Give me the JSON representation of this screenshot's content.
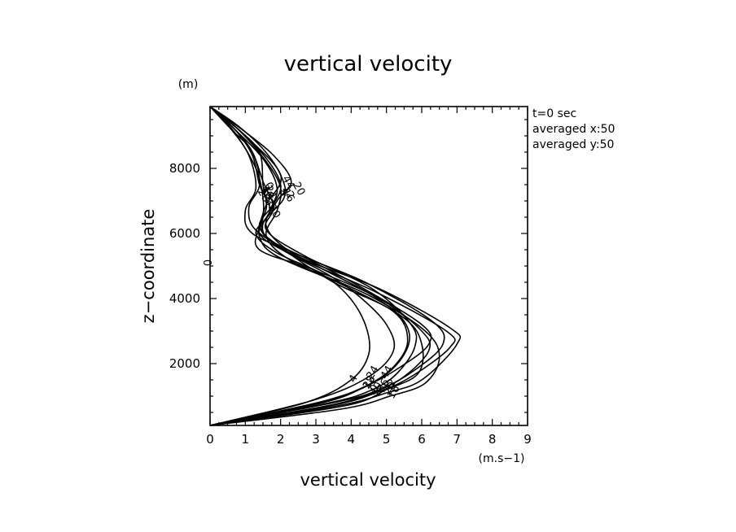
{
  "chart_data": {
    "type": "line",
    "title": "vertical velocity",
    "xlabel": "vertical velocity",
    "ylabel": "z−coordinate",
    "x_unit": "(m.s−1)",
    "y_unit": "(m)",
    "xlim": [
      0,
      9
    ],
    "ylim": [
      100,
      9900
    ],
    "x_ticks": [
      "0",
      "1",
      "2",
      "3",
      "4",
      "5",
      "6",
      "7",
      "8",
      "9"
    ],
    "y_ticks": [
      {
        "value": 2000,
        "label": "2000"
      },
      {
        "value": 4000,
        "label": "4000"
      },
      {
        "value": 6000,
        "label": "6000"
      },
      {
        "value": 8000,
        "label": "8000"
      }
    ],
    "info": [
      "t=0 sec",
      "averaged  x:50",
      "averaged  y:50"
    ],
    "series": [
      {
        "label": "0",
        "points": [
          [
            0,
            100
          ],
          [
            3.4,
            800
          ],
          [
            4.6,
            1200
          ],
          [
            5.3,
            1700
          ],
          [
            5.8,
            2500
          ],
          [
            5.7,
            3200
          ],
          [
            4.6,
            4300
          ],
          [
            2.7,
            5300
          ],
          [
            1.6,
            6100
          ],
          [
            1.8,
            6800
          ],
          [
            1.5,
            7600
          ],
          [
            1.2,
            8500
          ],
          [
            0.7,
            9200
          ],
          [
            0,
            9900
          ]
        ]
      },
      {
        "label": "4",
        "points": [
          [
            0,
            100
          ],
          [
            2.7,
            800
          ],
          [
            4.0,
            1500
          ],
          [
            4.5,
            2300
          ],
          [
            4.4,
            3200
          ],
          [
            3.9,
            4100
          ],
          [
            3.1,
            4800
          ],
          [
            1.9,
            5400
          ],
          [
            1.3,
            6000
          ],
          [
            1.7,
            6700
          ],
          [
            1.4,
            7500
          ],
          [
            1.2,
            8400
          ],
          [
            0.7,
            9200
          ],
          [
            0,
            9900
          ]
        ]
      },
      {
        "label": "12",
        "points": [
          [
            0,
            100
          ],
          [
            3.2,
            800
          ],
          [
            4.4,
            1300
          ],
          [
            5.2,
            1900
          ],
          [
            5.6,
            2700
          ],
          [
            5.2,
            3600
          ],
          [
            3.5,
            4500
          ],
          [
            2.1,
            5500
          ],
          [
            1.4,
            6200
          ],
          [
            1.8,
            6900
          ],
          [
            2.0,
            7500
          ],
          [
            1.6,
            8300
          ],
          [
            0.8,
            9200
          ],
          [
            0,
            9900
          ]
        ]
      },
      {
        "label": "24",
        "points": [
          [
            0,
            100
          ],
          [
            3.0,
            900
          ],
          [
            4.5,
            1600
          ],
          [
            5.2,
            2400
          ],
          [
            5.0,
            3200
          ],
          [
            4.3,
            4000
          ],
          [
            3.4,
            4700
          ],
          [
            2.2,
            5400
          ],
          [
            1.4,
            6000
          ],
          [
            1.6,
            6800
          ],
          [
            1.5,
            7500
          ],
          [
            1.4,
            8500
          ],
          [
            0.8,
            9200
          ],
          [
            0,
            9900
          ]
        ]
      },
      {
        "label": "28",
        "points": [
          [
            0,
            100
          ],
          [
            3.1,
            800
          ],
          [
            4.4,
            1300
          ],
          [
            5.4,
            1900
          ],
          [
            6.2,
            2600
          ],
          [
            6.0,
            3200
          ],
          [
            4.2,
            4400
          ],
          [
            2.6,
            5300
          ],
          [
            1.2,
            6000
          ],
          [
            1.0,
            6700
          ],
          [
            1.3,
            7400
          ],
          [
            1.1,
            8400
          ],
          [
            0.6,
            9200
          ],
          [
            0,
            9900
          ]
        ]
      },
      {
        "label": "36",
        "points": [
          [
            0,
            100
          ],
          [
            3.5,
            800
          ],
          [
            4.8,
            1200
          ],
          [
            5.8,
            1800
          ],
          [
            6.6,
            2600
          ],
          [
            6.3,
            3300
          ],
          [
            4.4,
            4500
          ],
          [
            2.4,
            5400
          ],
          [
            1.3,
            6100
          ],
          [
            1.1,
            6800
          ],
          [
            1.4,
            7500
          ],
          [
            1.2,
            8500
          ],
          [
            0.6,
            9200
          ],
          [
            0,
            9900
          ]
        ]
      },
      {
        "label": "8",
        "points": [
          [
            0,
            100
          ],
          [
            3.4,
            700
          ],
          [
            4.7,
            1100
          ],
          [
            5.7,
            1600
          ],
          [
            6.8,
            2500
          ],
          [
            6.7,
            3000
          ],
          [
            4.7,
            4200
          ],
          [
            2.6,
            5200
          ],
          [
            1.5,
            6000
          ],
          [
            1.7,
            6700
          ],
          [
            1.9,
            7400
          ],
          [
            1.5,
            8300
          ],
          [
            0.7,
            9200
          ],
          [
            0,
            9900
          ]
        ]
      },
      {
        "label": "20",
        "points": [
          [
            0,
            100
          ],
          [
            3.6,
            700
          ],
          [
            5.0,
            1100
          ],
          [
            6.0,
            1500
          ],
          [
            7.0,
            2600
          ],
          [
            6.8,
            3100
          ],
          [
            4.8,
            4300
          ],
          [
            2.5,
            5300
          ],
          [
            1.6,
            6200
          ],
          [
            1.9,
            7000
          ],
          [
            2.3,
            7600
          ],
          [
            1.8,
            8400
          ],
          [
            0.9,
            9200
          ],
          [
            0,
            9900
          ]
        ]
      },
      {
        "label": "16",
        "points": [
          [
            0,
            100
          ],
          [
            3.7,
            600
          ],
          [
            5.1,
            1000
          ],
          [
            6.1,
            1400
          ],
          [
            6.5,
            2200
          ],
          [
            6.1,
            3000
          ],
          [
            4.5,
            4100
          ],
          [
            2.4,
            5100
          ],
          [
            1.6,
            5900
          ],
          [
            1.9,
            6700
          ],
          [
            2.0,
            7400
          ],
          [
            1.6,
            8200
          ],
          [
            0.8,
            9200
          ],
          [
            0,
            9900
          ]
        ]
      },
      {
        "label": "32",
        "points": [
          [
            0,
            100
          ],
          [
            3.8,
            700
          ],
          [
            5.0,
            1200
          ],
          [
            5.9,
            1700
          ],
          [
            6.0,
            2600
          ],
          [
            5.5,
            3400
          ],
          [
            3.8,
            4400
          ],
          [
            1.9,
            5300
          ],
          [
            1.4,
            5900
          ],
          [
            1.5,
            6500
          ],
          [
            1.5,
            7100
          ],
          [
            1.3,
            8000
          ],
          [
            0.7,
            9100
          ],
          [
            0,
            9900
          ]
        ]
      },
      {
        "label": "40",
        "points": [
          [
            0,
            100
          ],
          [
            3.3,
            700
          ],
          [
            4.6,
            1100
          ],
          [
            5.5,
            1600
          ],
          [
            6.2,
            2400
          ],
          [
            6.0,
            3000
          ],
          [
            4.8,
            4000
          ],
          [
            2.9,
            4900
          ],
          [
            1.4,
            5500
          ],
          [
            1.4,
            6200
          ],
          [
            1.6,
            6900
          ],
          [
            2.0,
            7800
          ],
          [
            1.0,
            9000
          ],
          [
            0,
            9900
          ]
        ]
      },
      {
        "label": "44",
        "points": [
          [
            0,
            100
          ],
          [
            3.4,
            900
          ],
          [
            4.9,
            1600
          ],
          [
            5.6,
            2500
          ],
          [
            5.5,
            3300
          ],
          [
            4.6,
            4100
          ],
          [
            3.2,
            4900
          ],
          [
            1.8,
            5700
          ],
          [
            1.5,
            6300
          ],
          [
            2.1,
            7100
          ],
          [
            2.0,
            7800
          ],
          [
            1.5,
            8600
          ],
          [
            0.8,
            9300
          ],
          [
            0,
            9900
          ]
        ]
      }
    ]
  }
}
